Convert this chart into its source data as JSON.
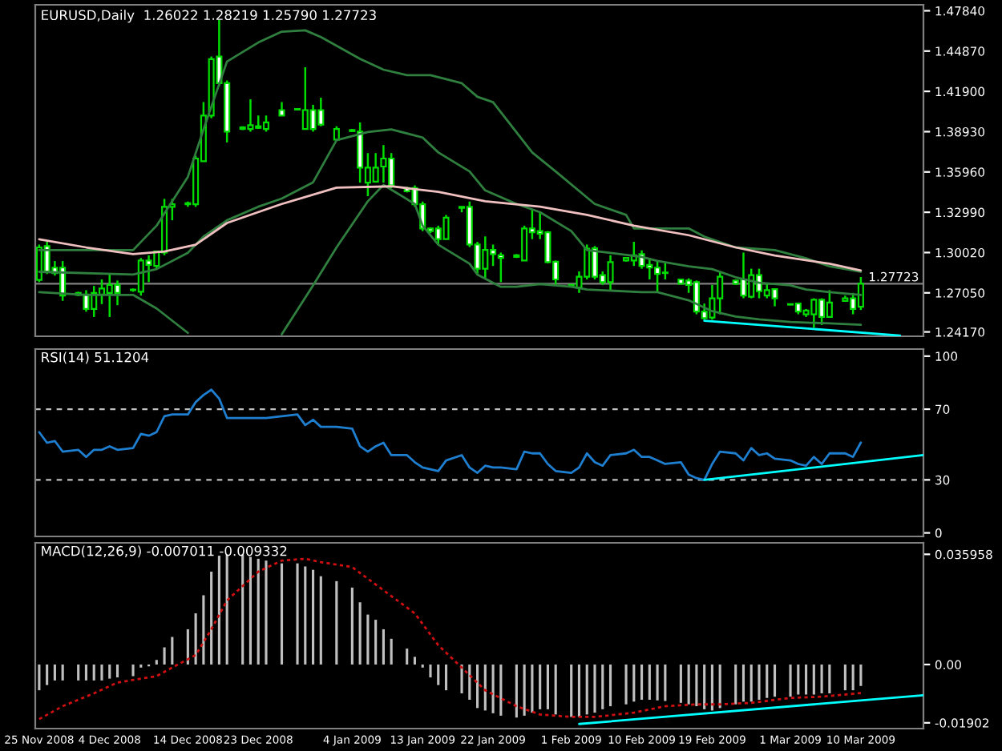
{
  "chart_data": [
    {
      "type": "candlestick",
      "title": "EURUSD,Daily  1.26022 1.28219 1.25790 1.27723",
      "x": [
        "2008-11-25",
        "2008-11-26",
        "2008-11-27",
        "2008-11-28",
        "2008-11-30",
        "2008-12-01",
        "2008-12-02",
        "2008-12-03",
        "2008-12-04",
        "2008-12-05",
        "2008-12-07",
        "2008-12-08",
        "2008-12-09",
        "2008-12-10",
        "2008-12-11",
        "2008-12-12",
        "2008-12-14",
        "2008-12-15",
        "2008-12-16",
        "2008-12-17",
        "2008-12-18",
        "2008-12-19",
        "2008-12-21",
        "2008-12-22",
        "2008-12-23",
        "2008-12-24",
        "2008-12-26",
        "2008-12-28",
        "2008-12-29",
        "2008-12-30",
        "2008-12-31",
        "2009-01-02",
        "2009-01-04",
        "2009-01-05",
        "2009-01-06",
        "2009-01-07",
        "2009-01-08",
        "2009-01-09",
        "2009-01-11",
        "2009-01-12",
        "2009-01-13",
        "2009-01-14",
        "2009-01-15",
        "2009-01-16",
        "2009-01-18",
        "2009-01-19",
        "2009-01-20",
        "2009-01-21",
        "2009-01-22",
        "2009-01-23",
        "2009-01-25",
        "2009-01-26",
        "2009-01-27",
        "2009-01-28",
        "2009-01-29",
        "2009-01-30",
        "2009-02-01",
        "2009-02-02",
        "2009-02-03",
        "2009-02-04",
        "2009-02-05",
        "2009-02-06",
        "2009-02-08",
        "2009-02-09",
        "2009-02-10",
        "2009-02-11",
        "2009-02-12",
        "2009-02-13",
        "2009-02-15",
        "2009-02-16",
        "2009-02-17",
        "2009-02-18",
        "2009-02-19",
        "2009-02-20",
        "2009-02-22",
        "2009-02-23",
        "2009-02-24",
        "2009-02-25",
        "2009-02-26",
        "2009-02-27",
        "2009-03-01",
        "2009-03-02",
        "2009-03-03",
        "2009-03-04",
        "2009-03-05",
        "2009-03-06",
        "2009-03-08",
        "2009-03-09",
        "2009-03-10"
      ],
      "ohlc": [
        [
          1.28,
          1.3061,
          1.2784,
          1.304
        ],
        [
          1.305,
          1.3081,
          1.2844,
          1.2863
        ],
        [
          1.2891,
          1.2939,
          1.2832,
          1.2851
        ],
        [
          1.2891,
          1.2939,
          1.2646,
          1.2685
        ],
        [
          1.2705,
          1.2713,
          1.2681,
          1.2689
        ],
        [
          1.2693,
          1.2725,
          1.2566,
          1.2586
        ],
        [
          1.2586,
          1.2756,
          1.2527,
          1.2705
        ],
        [
          1.2693,
          1.2804,
          1.2622,
          1.2737
        ],
        [
          1.2705,
          1.2844,
          1.2527,
          1.2764
        ],
        [
          1.2764,
          1.2796,
          1.2614,
          1.2705
        ],
        [
          1.2725,
          1.2737,
          1.2713,
          1.2729
        ],
        [
          1.2713,
          1.2962,
          1.2685,
          1.2943
        ],
        [
          1.2943,
          1.2982,
          1.2784,
          1.2911
        ],
        [
          1.2903,
          1.301,
          1.2883,
          1.301
        ],
        [
          1.3002,
          1.3398,
          1.2982,
          1.3339
        ],
        [
          1.3339,
          1.3398,
          1.324,
          1.3358
        ],
        [
          1.3358,
          1.3378,
          1.3339,
          1.3366
        ],
        [
          1.3358,
          1.3715,
          1.3339,
          1.3695
        ],
        [
          1.3675,
          1.4111,
          1.3675,
          1.4012
        ],
        [
          1.4012,
          1.4447,
          1.3992,
          1.4428
        ],
        [
          1.4447,
          1.4717,
          1.423,
          1.425
        ],
        [
          1.425,
          1.427,
          1.3814,
          1.3893
        ],
        [
          1.3913,
          1.3933,
          1.3905,
          1.3925
        ],
        [
          1.3913,
          1.4131,
          1.3893,
          1.3941
        ],
        [
          1.3921,
          1.4012,
          1.3913,
          1.3933
        ],
        [
          1.3913,
          1.4012,
          1.3893,
          1.3961
        ],
        [
          1.4052,
          1.4111,
          1.4012,
          1.4012
        ],
        [
          1.406,
          1.4064,
          1.4052,
          1.4056
        ],
        [
          1.3913,
          1.4368,
          1.3913,
          1.4052
        ],
        [
          1.4052,
          1.4091,
          1.3893,
          1.3913
        ],
        [
          1.4052,
          1.4143,
          1.3933,
          1.3945
        ],
        [
          1.3834,
          1.3933,
          1.3826,
          1.3913
        ],
        [
          1.3905,
          1.3913,
          1.3893,
          1.3897
        ],
        [
          1.3893,
          1.3961,
          1.3517,
          1.3628
        ],
        [
          1.3517,
          1.3735,
          1.3418,
          1.3628
        ],
        [
          1.3525,
          1.3735,
          1.3525,
          1.3628
        ],
        [
          1.3636,
          1.3794,
          1.3517,
          1.3695
        ],
        [
          1.3695,
          1.3735,
          1.3477,
          1.3497
        ],
        [
          1.3477,
          1.3485,
          1.3445,
          1.3453
        ],
        [
          1.3477,
          1.3497,
          1.3339,
          1.3358
        ],
        [
          1.3358,
          1.3378,
          1.316,
          1.318
        ],
        [
          1.318,
          1.3188,
          1.3145,
          1.316
        ],
        [
          1.318,
          1.32,
          1.3061,
          1.3101
        ],
        [
          1.3101,
          1.3279,
          1.3101,
          1.3259
        ],
        [
          1.3339,
          1.3339,
          1.3299,
          1.3331
        ],
        [
          1.3339,
          1.3378,
          1.3042,
          1.3061
        ],
        [
          1.3061,
          1.3081,
          1.2844,
          1.2883
        ],
        [
          1.2883,
          1.3121,
          1.2804,
          1.3022
        ],
        [
          1.3022,
          1.3061,
          1.2903,
          1.299
        ],
        [
          1.2982,
          1.3002,
          1.2784,
          1.2962
        ],
        [
          1.2982,
          1.299,
          1.2962,
          1.297
        ],
        [
          1.2943,
          1.32,
          1.2943,
          1.318
        ],
        [
          1.318,
          1.3319,
          1.3101,
          1.3152
        ],
        [
          1.316,
          1.3299,
          1.3101,
          1.3141
        ],
        [
          1.3152,
          1.316,
          1.2923,
          1.2931
        ],
        [
          1.2935,
          1.2943,
          1.2764,
          1.2804
        ],
        [
          1.2764,
          1.2768,
          1.2744,
          1.2752
        ],
        [
          1.2744,
          1.2863,
          1.2705,
          1.2824
        ],
        [
          1.2824,
          1.3061,
          1.2804,
          1.303
        ],
        [
          1.3034,
          1.305,
          1.2804,
          1.2824
        ],
        [
          1.2836,
          1.2863,
          1.2764,
          1.2784
        ],
        [
          1.2784,
          1.2982,
          1.2725,
          1.2931
        ],
        [
          1.2943,
          1.2966,
          1.2935,
          1.2962
        ],
        [
          1.2943,
          1.3081,
          1.2903,
          1.2982
        ],
        [
          1.299,
          1.3018,
          1.2883,
          1.2903
        ],
        [
          1.2911,
          1.2962,
          1.2804,
          1.2891
        ],
        [
          1.2891,
          1.2943,
          1.2705,
          1.2844
        ],
        [
          1.2855,
          1.2923,
          1.2804,
          1.2851
        ],
        [
          1.2804,
          1.2808,
          1.2768,
          1.2772
        ],
        [
          1.2796,
          1.2812,
          1.2705,
          1.2764
        ],
        [
          1.2784,
          1.2796,
          1.2547,
          1.2567
        ],
        [
          1.2567,
          1.2626,
          1.2507,
          1.2519
        ],
        [
          1.2523,
          1.2764,
          1.2507,
          1.2665
        ],
        [
          1.2665,
          1.2863,
          1.2547,
          1.2824
        ],
        [
          1.2796,
          1.2804,
          1.2764,
          1.2772
        ],
        [
          1.2804,
          1.3002,
          1.2665,
          1.2685
        ],
        [
          1.2677,
          1.2883,
          1.2665,
          1.2836
        ],
        [
          1.2836,
          1.2883,
          1.2665,
          1.2717
        ],
        [
          1.2685,
          1.2776,
          1.2665,
          1.2725
        ],
        [
          1.2733,
          1.2733,
          1.2606,
          1.2665
        ],
        [
          1.2622,
          1.2626,
          1.2614,
          1.2618
        ],
        [
          1.2626,
          1.2626,
          1.2547,
          1.2567
        ],
        [
          1.2547,
          1.2586,
          1.2527,
          1.2574
        ],
        [
          1.2547,
          1.2665,
          1.2448,
          1.2654
        ],
        [
          1.2654,
          1.2665,
          1.2468,
          1.2527
        ],
        [
          1.2527,
          1.2725,
          1.2527,
          1.2634
        ],
        [
          1.2646,
          1.2685,
          1.2642,
          1.2665
        ],
        [
          1.2665,
          1.2705,
          1.2547,
          1.2586
        ],
        [
          1.26022,
          1.28219,
          1.2579,
          1.27723
        ]
      ],
      "series": [
        {
          "type": "line",
          "color": "#2f7f3f",
          "x": [
            "2008-11-25",
            "2008-12-01",
            "2008-12-07",
            "2008-12-10",
            "2008-12-14",
            "2008-12-16",
            "2008-12-19",
            "2008-12-23",
            "2008-12-26",
            "2008-12-29",
            "2008-12-31",
            "2009-01-05",
            "2009-01-08",
            "2009-01-11",
            "2009-01-14",
            "2009-01-18",
            "2009-01-20",
            "2009-01-22",
            "2009-01-27",
            "2009-01-30",
            "2009-02-04",
            "2009-02-08",
            "2009-02-09",
            "2009-02-16",
            "2009-02-18",
            "2009-02-22",
            "2009-02-27",
            "2009-03-03",
            "2009-03-06",
            "2009-03-10"
          ],
          "values": [
            1.302,
            1.302,
            1.302,
            1.32,
            1.356,
            1.391,
            1.441,
            1.455,
            1.463,
            1.464,
            1.459,
            1.443,
            1.435,
            1.431,
            1.431,
            1.425,
            1.415,
            1.411,
            1.374,
            1.36,
            1.336,
            1.328,
            1.318,
            1.318,
            1.312,
            1.304,
            1.302,
            1.296,
            1.29,
            1.286
          ]
        },
        {
          "type": "line",
          "color": "#2f7f3f",
          "x": [
            "2008-11-25",
            "2008-12-07",
            "2008-12-10",
            "2008-12-14",
            "2008-12-16",
            "2008-12-19",
            "2008-12-23",
            "2008-12-26",
            "2008-12-30",
            "2009-01-02",
            "2009-01-06",
            "2009-01-09",
            "2009-01-13",
            "2009-01-15",
            "2009-01-19",
            "2009-01-21",
            "2009-01-25",
            "2009-01-28",
            "2009-02-01",
            "2009-02-03",
            "2009-02-06",
            "2009-02-10",
            "2009-02-12",
            "2009-02-16",
            "2009-02-19",
            "2009-02-22",
            "2009-02-25",
            "2009-03-01",
            "2009-03-03",
            "2009-03-06",
            "2009-03-10"
          ],
          "values": [
            1.286,
            1.284,
            1.288,
            1.3,
            1.312,
            1.324,
            1.334,
            1.34,
            1.352,
            1.383,
            1.389,
            1.391,
            1.385,
            1.374,
            1.36,
            1.346,
            1.336,
            1.33,
            1.316,
            1.302,
            1.3,
            1.297,
            1.294,
            1.29,
            1.288,
            1.282,
            1.278,
            1.276,
            1.273,
            1.271,
            1.269
          ]
        },
        {
          "type": "line",
          "color": "#2f7f3f",
          "x": [
            "2008-11-25",
            "2008-12-01",
            "2008-12-07",
            "2008-12-10",
            "2008-12-14",
            "2008-12-19",
            "2008-12-26",
            "2008-12-30",
            "2009-01-02",
            "2009-01-06",
            "2009-01-08",
            "2009-01-12",
            "2009-01-13",
            "2009-01-15",
            "2009-01-19",
            "2009-01-20",
            "2009-01-23",
            "2009-01-25",
            "2009-01-28",
            "2009-02-01",
            "2009-02-03",
            "2009-02-10",
            "2009-02-12",
            "2009-02-16",
            "2009-02-19",
            "2009-02-22",
            "2009-02-25",
            "2009-03-01",
            "2009-03-06",
            "2009-03-10"
          ],
          "values": [
            1.271,
            1.269,
            1.269,
            1.259,
            1.241,
            null,
            1.24,
            1.276,
            1.304,
            1.338,
            1.35,
            1.336,
            1.32,
            1.306,
            1.292,
            1.284,
            1.275,
            1.275,
            1.277,
            1.275,
            1.273,
            1.271,
            1.271,
            1.265,
            1.257,
            1.253,
            1.251,
            1.249,
            1.248,
            1.247
          ]
        },
        {
          "type": "line",
          "color": "#f0c0c0",
          "x": [
            "2008-11-25",
            "2008-12-01",
            "2008-12-07",
            "2008-12-11",
            "2008-12-15",
            "2008-12-19",
            "2008-12-26",
            "2009-01-02",
            "2009-01-09",
            "2009-01-15",
            "2009-01-21",
            "2009-01-28",
            "2009-02-03",
            "2009-02-09",
            "2009-02-16",
            "2009-02-22",
            "2009-02-27",
            "2009-03-06",
            "2009-03-10"
          ],
          "values": [
            1.31,
            1.304,
            1.299,
            1.301,
            1.306,
            1.322,
            1.336,
            1.348,
            1.349,
            1.345,
            1.338,
            1.334,
            1.328,
            1.32,
            1.313,
            1.304,
            1.298,
            1.292,
            1.287
          ]
        },
        {
          "type": "line",
          "color": "#00ffff",
          "x": [
            "2009-02-18",
            "2009-03-15"
          ],
          "values": [
            1.25,
            1.239
          ]
        }
      ],
      "ref_lines": [
        {
          "axis": "y",
          "value": 1.27723,
          "label": "1.27723",
          "color": "#808080",
          "line_style": "solid"
        }
      ],
      "xlim": [
        "2008-11-24T12:00",
        "2009-03-18"
      ],
      "ylim": [
        1.2385,
        1.4828
      ],
      "yticks": [
        {
          "value": 1.4784,
          "label": "1.47840"
        },
        {
          "value": 1.4487,
          "label": "1.44870"
        },
        {
          "value": 1.419,
          "label": "1.41900"
        },
        {
          "value": 1.3893,
          "label": "1.38930"
        },
        {
          "value": 1.3596,
          "label": "1.35960"
        },
        {
          "value": 1.3299,
          "label": "1.32990"
        },
        {
          "value": 1.3002,
          "label": "1.30020"
        },
        {
          "value": 1.2705,
          "label": "1.27050"
        },
        {
          "value": 1.2417,
          "label": "1.24170"
        }
      ],
      "tick_labels": "y"
    },
    {
      "type": "line",
      "title": "RSI(14) 51.1204",
      "x": [
        "2008-11-25",
        "2008-11-26",
        "2008-11-27",
        "2008-11-28",
        "2008-11-30",
        "2008-12-01",
        "2008-12-02",
        "2008-12-03",
        "2008-12-04",
        "2008-12-05",
        "2008-12-07",
        "2008-12-08",
        "2008-12-09",
        "2008-12-10",
        "2008-12-11",
        "2008-12-12",
        "2008-12-14",
        "2008-12-15",
        "2008-12-16",
        "2008-12-17",
        "2008-12-18",
        "2008-12-19",
        "2008-12-21",
        "2008-12-22",
        "2008-12-23",
        "2008-12-24",
        "2008-12-26",
        "2008-12-28",
        "2008-12-29",
        "2008-12-30",
        "2008-12-31",
        "2009-01-02",
        "2009-01-04",
        "2009-01-05",
        "2009-01-06",
        "2009-01-07",
        "2009-01-08",
        "2009-01-09",
        "2009-01-11",
        "2009-01-12",
        "2009-01-13",
        "2009-01-14",
        "2009-01-15",
        "2009-01-16",
        "2009-01-18",
        "2009-01-19",
        "2009-01-20",
        "2009-01-21",
        "2009-01-22",
        "2009-01-23",
        "2009-01-25",
        "2009-01-26",
        "2009-01-27",
        "2009-01-28",
        "2009-01-29",
        "2009-01-30",
        "2009-02-01",
        "2009-02-02",
        "2009-02-03",
        "2009-02-04",
        "2009-02-05",
        "2009-02-06",
        "2009-02-08",
        "2009-02-09",
        "2009-02-10",
        "2009-02-11",
        "2009-02-12",
        "2009-02-13",
        "2009-02-15",
        "2009-02-16",
        "2009-02-17",
        "2009-02-18",
        "2009-02-19",
        "2009-02-20",
        "2009-02-22",
        "2009-02-23",
        "2009-02-24",
        "2009-02-25",
        "2009-02-26",
        "2009-02-27",
        "2009-03-01",
        "2009-03-02",
        "2009-03-03",
        "2009-03-04",
        "2009-03-05",
        "2009-03-06",
        "2009-03-08",
        "2009-03-09",
        "2009-03-10"
      ],
      "series": [
        {
          "color": "#1e7fd0",
          "values": [
            57,
            51,
            52,
            46,
            47,
            43,
            47,
            47,
            49,
            47,
            48,
            56,
            55,
            57,
            66,
            67,
            67,
            74,
            78,
            81,
            76,
            65,
            65,
            65,
            65,
            65,
            66,
            67,
            61,
            64,
            60,
            60,
            59,
            49,
            46,
            49,
            51,
            44,
            44,
            40,
            37,
            36,
            35,
            41,
            44,
            37,
            34,
            38,
            37,
            37,
            36,
            46,
            45,
            45,
            39,
            35,
            34,
            37,
            45,
            40,
            38,
            44,
            45,
            47,
            43,
            43,
            41,
            39,
            40,
            33,
            31,
            30,
            39,
            46,
            45,
            41,
            48,
            44,
            45,
            42,
            41,
            39,
            38,
            43,
            39,
            45,
            45,
            43,
            51.1204
          ]
        },
        {
          "color": "#00ffff",
          "x": [
            "2009-02-18",
            "2009-03-18"
          ],
          "values": [
            30,
            44
          ]
        }
      ],
      "ref_lines": [
        {
          "axis": "y",
          "value": 70,
          "color": "#c0c0c0",
          "line_style": "dashed"
        },
        {
          "axis": "y",
          "value": 30,
          "color": "#c0c0c0",
          "line_style": "dashed"
        }
      ],
      "xlim": [
        "2008-11-24T12:00",
        "2009-03-18"
      ],
      "ylim": [
        -2,
        104
      ],
      "yticks": [
        0,
        30,
        70,
        100
      ],
      "tick_labels": "y"
    },
    {
      "type": "bar",
      "title": "MACD(12,26,9) -0.007011 -0.009332",
      "x": [
        "2008-11-25",
        "2008-11-26",
        "2008-11-27",
        "2008-11-28",
        "2008-11-30",
        "2008-12-01",
        "2008-12-02",
        "2008-12-03",
        "2008-12-04",
        "2008-12-05",
        "2008-12-07",
        "2008-12-08",
        "2008-12-09",
        "2008-12-10",
        "2008-12-11",
        "2008-12-12",
        "2008-12-14",
        "2008-12-15",
        "2008-12-16",
        "2008-12-17",
        "2008-12-18",
        "2008-12-19",
        "2008-12-21",
        "2008-12-22",
        "2008-12-23",
        "2008-12-24",
        "2008-12-26",
        "2008-12-28",
        "2008-12-29",
        "2008-12-30",
        "2008-12-31",
        "2009-01-02",
        "2009-01-04",
        "2009-01-05",
        "2009-01-06",
        "2009-01-07",
        "2009-01-08",
        "2009-01-09",
        "2009-01-11",
        "2009-01-12",
        "2009-01-13",
        "2009-01-14",
        "2009-01-15",
        "2009-01-16",
        "2009-01-18",
        "2009-01-19",
        "2009-01-20",
        "2009-01-21",
        "2009-01-22",
        "2009-01-23",
        "2009-01-25",
        "2009-01-26",
        "2009-01-27",
        "2009-01-28",
        "2009-01-29",
        "2009-01-30",
        "2009-02-01",
        "2009-02-02",
        "2009-02-03",
        "2009-02-04",
        "2009-02-05",
        "2009-02-06",
        "2009-02-08",
        "2009-02-09",
        "2009-02-10",
        "2009-02-11",
        "2009-02-12",
        "2009-02-13",
        "2009-02-15",
        "2009-02-16",
        "2009-02-17",
        "2009-02-18",
        "2009-02-19",
        "2009-02-20",
        "2009-02-22",
        "2009-02-23",
        "2009-02-24",
        "2009-02-25",
        "2009-02-26",
        "2009-02-27",
        "2009-03-01",
        "2009-03-02",
        "2009-03-03",
        "2009-03-04",
        "2009-03-05",
        "2009-03-06",
        "2009-03-08",
        "2009-03-09",
        "2009-03-10"
      ],
      "color": "#c0c0c0",
      "values": [
        -0.0084,
        -0.0067,
        -0.0052,
        -0.0052,
        -0.0052,
        -0.0052,
        -0.0052,
        -0.0052,
        -0.0046,
        -0.0042,
        -0.0038,
        -0.001,
        -0.0006,
        0.0015,
        0.0056,
        0.009,
        0.0115,
        0.0167,
        0.0226,
        0.0303,
        0.0355,
        0.0359,
        0.0359,
        0.0351,
        0.0345,
        0.0339,
        0.033,
        0.033,
        0.032,
        0.0309,
        0.0288,
        0.0272,
        0.0251,
        0.0203,
        0.0163,
        0.0146,
        0.0115,
        0.0084,
        0.0052,
        0.0025,
        -0.001,
        -0.0042,
        -0.0067,
        -0.0084,
        -0.0094,
        -0.0115,
        -0.0142,
        -0.015,
        -0.0159,
        -0.0167,
        -0.0173,
        -0.0167,
        -0.0157,
        -0.0146,
        -0.0146,
        -0.0163,
        -0.0171,
        -0.0171,
        -0.0163,
        -0.0157,
        -0.0146,
        -0.0136,
        -0.013,
        -0.0121,
        -0.0115,
        -0.0115,
        -0.0117,
        -0.0119,
        -0.0125,
        -0.013,
        -0.0136,
        -0.0146,
        -0.015,
        -0.0142,
        -0.013,
        -0.0121,
        -0.0121,
        -0.0115,
        -0.0109,
        -0.0105,
        -0.0105,
        -0.0098,
        -0.0098,
        -0.0098,
        -0.0094,
        -0.0094,
        -0.0084,
        -0.0084,
        -0.007
      ],
      "series": [
        {
          "type": "line",
          "color": "#d01010",
          "line_style": "dotted",
          "x": [
            "2008-11-25",
            "2008-11-28",
            "2008-12-02",
            "2008-12-05",
            "2008-12-08",
            "2008-12-10",
            "2008-12-12",
            "2008-12-15",
            "2008-12-17",
            "2008-12-19",
            "2008-12-23",
            "2008-12-26",
            "2008-12-29",
            "2008-12-31",
            "2009-01-04",
            "2009-01-07",
            "2009-01-12",
            "2009-01-15",
            "2009-01-18",
            "2009-01-21",
            "2009-01-25",
            "2009-01-28",
            "2009-02-01",
            "2009-02-04",
            "2009-02-09",
            "2009-02-13",
            "2009-02-17",
            "2009-02-20",
            "2009-02-24",
            "2009-03-01",
            "2009-03-05",
            "2009-03-10"
          ],
          "values": [
            -0.0178,
            -0.0136,
            -0.0094,
            -0.0059,
            -0.0046,
            -0.0038,
            -0.001,
            0.0031,
            0.0115,
            0.0209,
            0.0303,
            0.0339,
            0.0345,
            0.0334,
            0.0318,
            0.0261,
            0.0167,
            0.0063,
            -0.001,
            -0.0084,
            -0.0136,
            -0.0163,
            -0.0171,
            -0.0171,
            -0.0157,
            -0.0136,
            -0.013,
            -0.013,
            -0.0125,
            -0.0109,
            -0.0105,
            -0.0093
          ]
        },
        {
          "type": "line",
          "color": "#00ffff",
          "x": [
            "2009-02-02",
            "2009-03-18"
          ],
          "values": [
            -0.0194,
            -0.01
          ]
        }
      ],
      "xlim": [
        "2008-11-24T12:00",
        "2009-03-18"
      ],
      "ylim": [
        -0.0209,
        0.0397
      ],
      "yticks": [
        0.035958,
        {
          "value": 0,
          "label": "0.00"
        },
        -0.01902
      ],
      "xticks": [
        {
          "value": "2008-11-25",
          "label": "25 Nov 2008"
        },
        {
          "value": "2008-12-04",
          "label": "4 Dec 2008"
        },
        {
          "value": "2008-12-14",
          "label": "14 Dec 2008"
        },
        {
          "value": "2008-12-23",
          "label": "23 Dec 2008"
        },
        {
          "value": "2009-01-04",
          "label": "4 Jan 2009"
        },
        {
          "value": "2009-01-13",
          "label": "13 Jan 2009"
        },
        {
          "value": "2009-01-22",
          "label": "22 Jan 2009"
        },
        {
          "value": "2009-02-01",
          "label": "1 Feb 2009"
        },
        {
          "value": "2009-02-10",
          "label": "10 Feb 2009"
        },
        {
          "value": "2009-02-19",
          "label": "19 Feb 2009"
        },
        {
          "value": "2009-03-01",
          "label": "1 Mar 2009"
        },
        {
          "value": "2009-03-10",
          "label": "10 Mar 2009"
        }
      ]
    }
  ]
}
